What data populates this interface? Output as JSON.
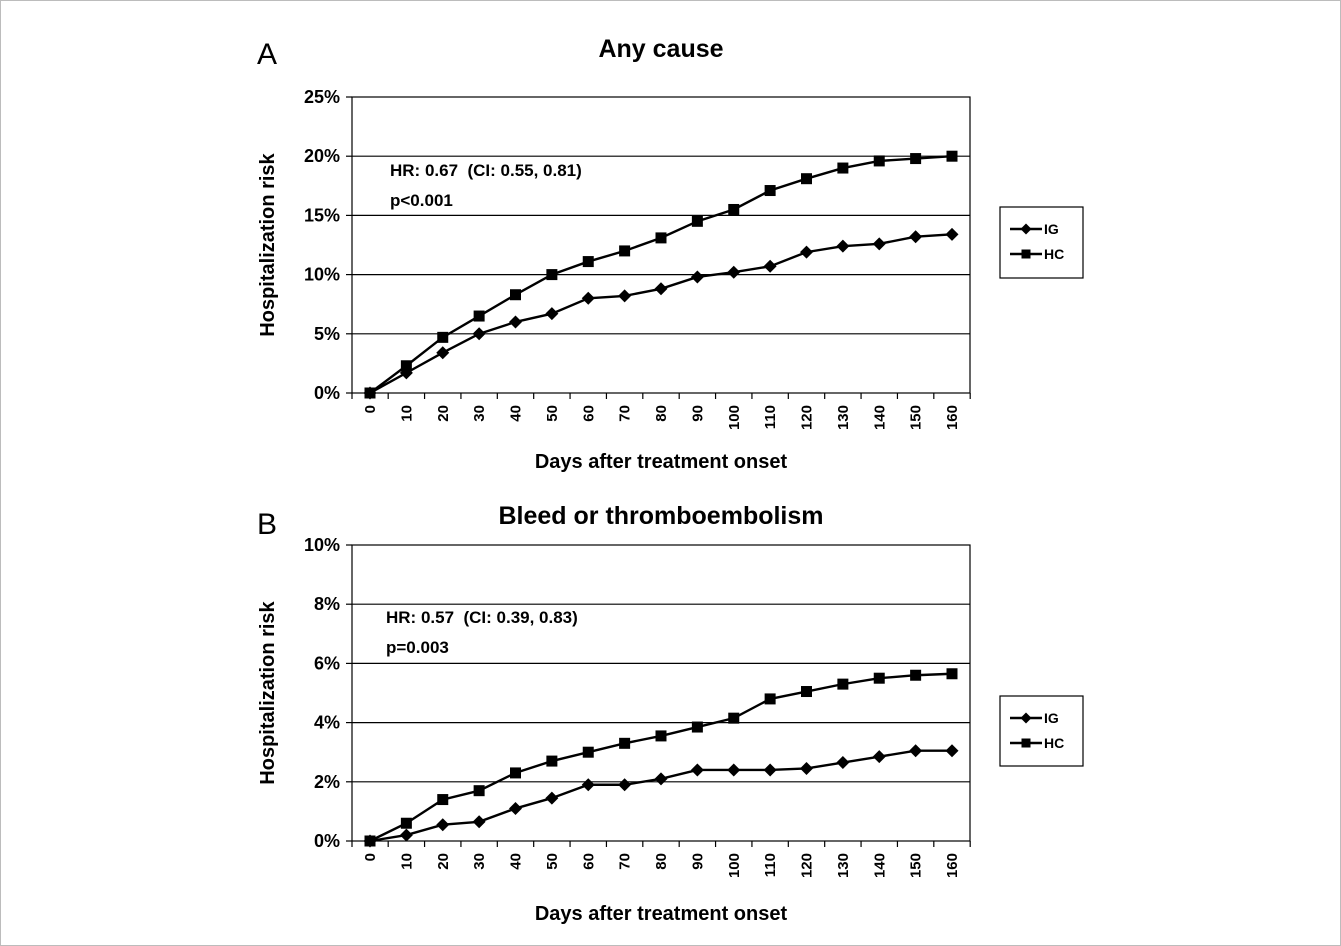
{
  "chart_data": [
    {
      "type": "line",
      "panel_label": "A",
      "title": "Any cause",
      "xlabel": "Days after treatment onset",
      "ylabel": "Hospitalization risk",
      "x": [
        0,
        10,
        20,
        30,
        40,
        50,
        60,
        70,
        80,
        90,
        100,
        110,
        120,
        130,
        140,
        150,
        160
      ],
      "y_ticks": [
        0,
        5,
        10,
        15,
        20,
        25
      ],
      "y_tick_labels": [
        "0%",
        "5%",
        "10%",
        "15%",
        "20%",
        "25%"
      ],
      "ylim": [
        0,
        25
      ],
      "y_unit": "%",
      "grid": "horizontal",
      "legend_position": "right",
      "annotations": [
        "HR: 0.67  (CI: 0.55, 0.81)",
        "p<0.001"
      ],
      "series": [
        {
          "name": "IG",
          "marker": "diamond",
          "color": "#000000",
          "values": [
            0,
            1.7,
            3.4,
            5.0,
            6.0,
            6.7,
            8.0,
            8.2,
            8.8,
            9.8,
            10.2,
            10.7,
            11.9,
            12.4,
            12.6,
            13.2,
            13.4
          ]
        },
        {
          "name": "HC",
          "marker": "square",
          "color": "#000000",
          "values": [
            0,
            2.3,
            4.7,
            6.5,
            8.3,
            10.0,
            11.1,
            12.0,
            13.1,
            14.5,
            15.5,
            17.1,
            18.1,
            19.0,
            19.6,
            19.8,
            20.0
          ]
        }
      ]
    },
    {
      "type": "line",
      "panel_label": "B",
      "title": "Bleed or thromboembolism",
      "xlabel": "Days after treatment onset",
      "ylabel": "Hospitalization risk",
      "x": [
        0,
        10,
        20,
        30,
        40,
        50,
        60,
        70,
        80,
        90,
        100,
        110,
        120,
        130,
        140,
        150,
        160
      ],
      "y_ticks": [
        0,
        2,
        4,
        6,
        8,
        10
      ],
      "y_tick_labels": [
        "0%",
        "2%",
        "4%",
        "6%",
        "8%",
        "10%"
      ],
      "ylim": [
        0,
        10
      ],
      "y_unit": "%",
      "grid": "horizontal",
      "legend_position": "right",
      "annotations": [
        "HR: 0.57  (CI: 0.39, 0.83)",
        "p=0.003"
      ],
      "series": [
        {
          "name": "IG",
          "marker": "diamond",
          "color": "#000000",
          "values": [
            0,
            0.2,
            0.55,
            0.65,
            1.1,
            1.45,
            1.9,
            1.9,
            2.1,
            2.4,
            2.4,
            2.4,
            2.45,
            2.65,
            2.85,
            3.05,
            3.05
          ]
        },
        {
          "name": "HC",
          "marker": "square",
          "color": "#000000",
          "values": [
            0,
            0.6,
            1.4,
            1.7,
            2.3,
            2.7,
            3.0,
            3.3,
            3.55,
            3.85,
            4.15,
            4.8,
            5.05,
            5.3,
            5.5,
            5.6,
            5.65
          ]
        }
      ]
    }
  ]
}
